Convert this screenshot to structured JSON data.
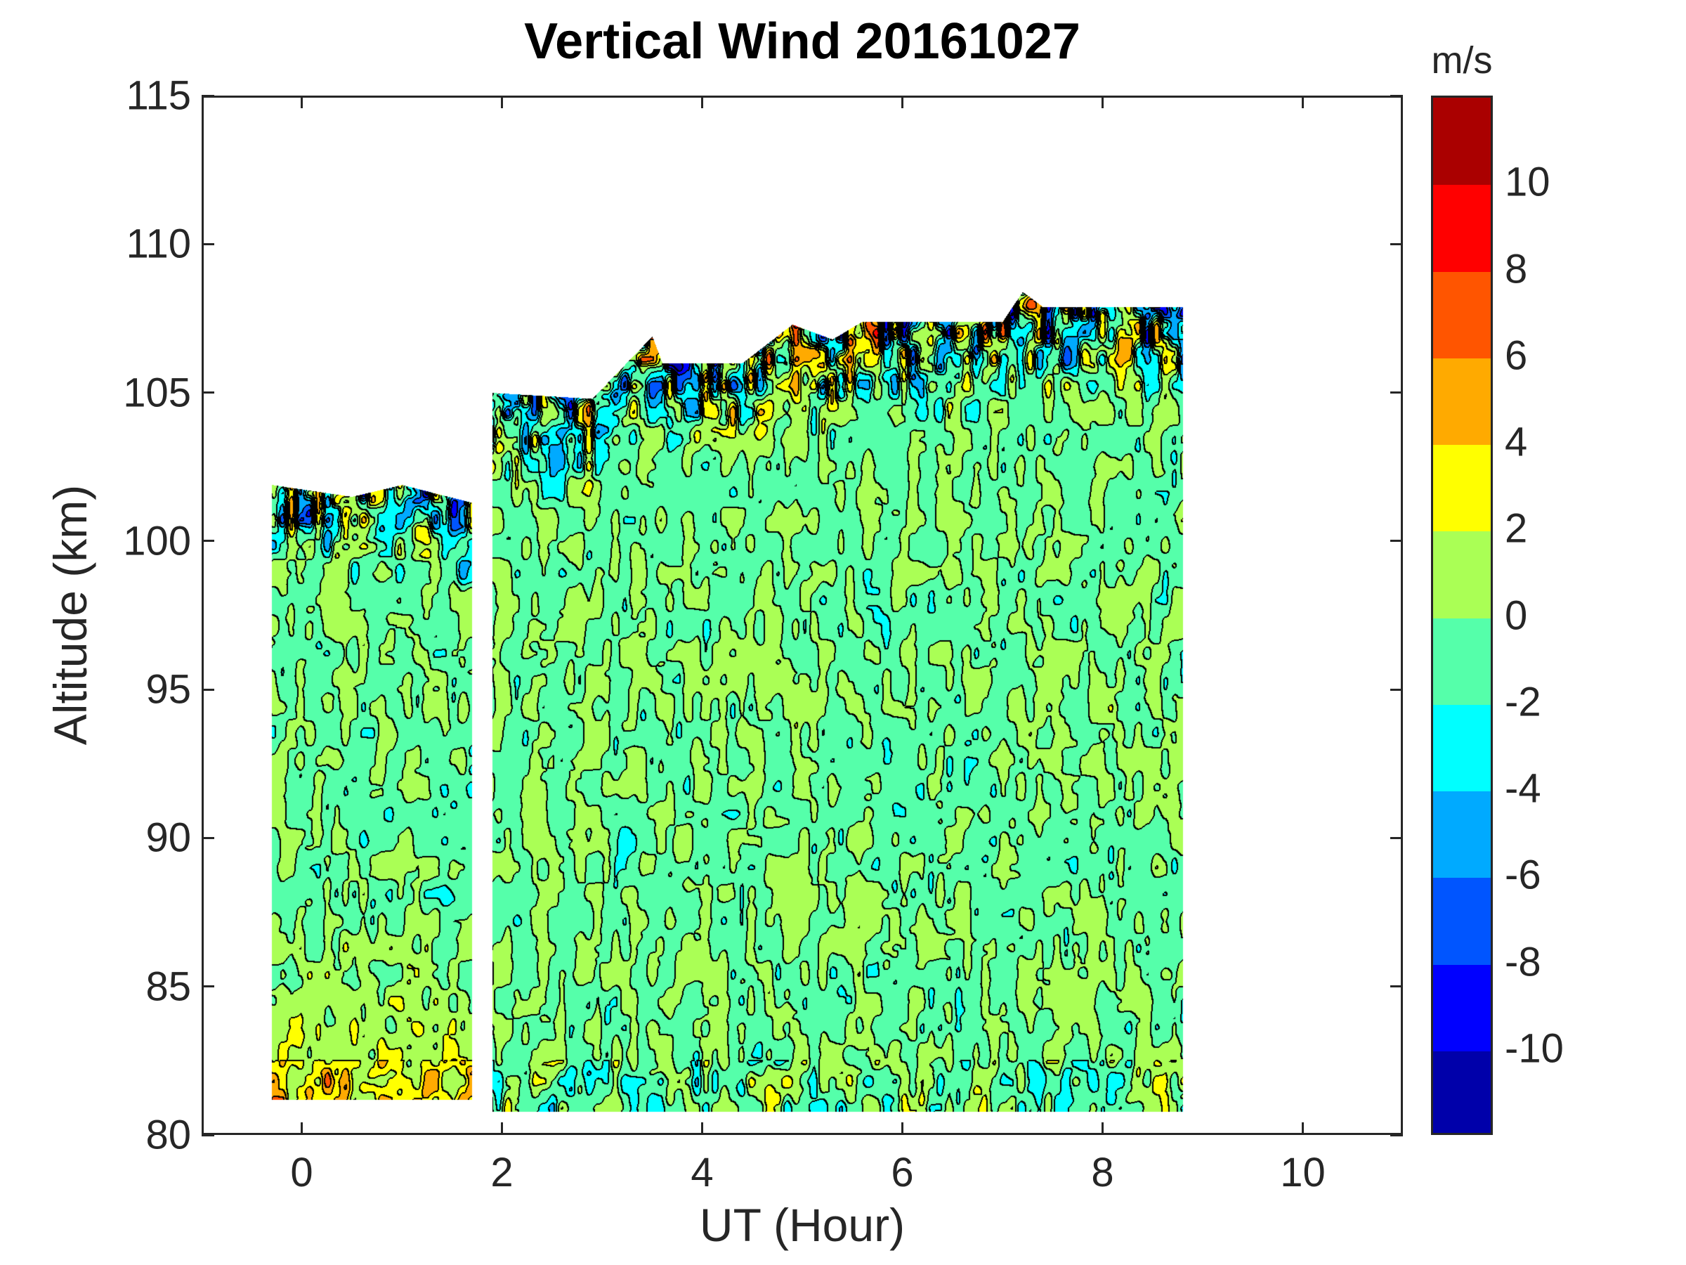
{
  "chart_data": {
    "type": "heatmap",
    "subtype": "filled-contour",
    "title": "Vertical Wind 20161027",
    "xlabel": "UT (Hour)",
    "ylabel": "Altitude (km)",
    "xlim": [
      -1,
      11
    ],
    "ylim": [
      80,
      115
    ],
    "xticks": [
      0,
      2,
      4,
      6,
      8,
      10
    ],
    "yticks": [
      80,
      85,
      90,
      95,
      100,
      105,
      110,
      115
    ],
    "colorbar": {
      "label": "m/s",
      "range": [
        -12,
        12
      ],
      "ticks": [
        -10,
        -8,
        -6,
        -4,
        -2,
        0,
        2,
        4,
        6,
        8,
        10
      ],
      "levels": [
        -12,
        -10,
        -8,
        -6,
        -4,
        -2,
        0,
        2,
        4,
        6,
        8,
        10,
        12
      ],
      "colors": [
        "#0000AA",
        "#0000FF",
        "#0055FF",
        "#00AAFF",
        "#00FFFF",
        "#55FFAA",
        "#AAFF55",
        "#FFFF00",
        "#FFAA00",
        "#FF5500",
        "#FF0000",
        "#AA0000"
      ]
    },
    "data_segments": [
      {
        "ut_range": [
          -0.3,
          1.7
        ],
        "alt_bottom": 81.2,
        "alt_top_profile": [
          [
            -0.3,
            101.9
          ],
          [
            0.5,
            101.5
          ],
          [
            1.0,
            101.9
          ],
          [
            1.7,
            101.3
          ]
        ],
        "typical_value_range": [
          -2,
          4
        ],
        "note": "warm (2-4 m/s) below 88 km"
      },
      {
        "ut_range": [
          1.9,
          8.8
        ],
        "alt_bottom": 80.8,
        "alt_top_profile": [
          [
            1.9,
            105
          ],
          [
            2.9,
            104.8
          ],
          [
            3.5,
            106.9
          ],
          [
            3.6,
            106
          ],
          [
            4.4,
            106
          ],
          [
            4.9,
            107.3
          ],
          [
            5.3,
            106.8
          ],
          [
            5.6,
            107.4
          ],
          [
            7.0,
            107.4
          ],
          [
            7.2,
            108.4
          ],
          [
            7.4,
            107.9
          ],
          [
            8.8,
            107.9
          ]
        ],
        "typical_value_range": [
          -2,
          2
        ],
        "note": "strong +/-10 m/s variability near top boundary"
      }
    ]
  }
}
